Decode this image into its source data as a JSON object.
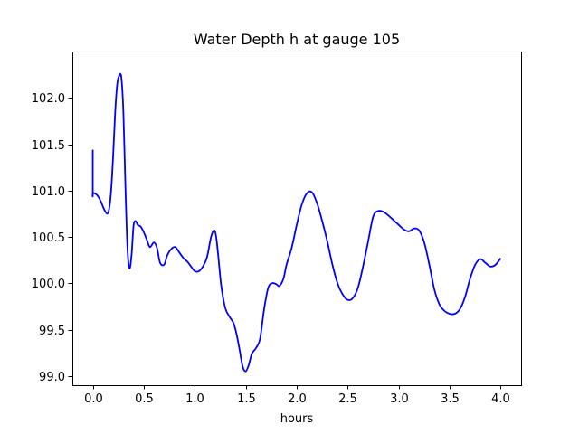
{
  "chart_data": {
    "type": "line",
    "title": "Water Depth h at gauge 105",
    "xlabel": "hours",
    "ylabel": "",
    "xlim": [
      -0.2,
      4.2
    ],
    "ylim": [
      98.9,
      102.5
    ],
    "xticks": [
      0.0,
      0.5,
      1.0,
      1.5,
      2.0,
      2.5,
      3.0,
      3.5,
      4.0
    ],
    "xtick_labels": [
      "0.0",
      "0.5",
      "1.0",
      "1.5",
      "2.0",
      "2.5",
      "3.0",
      "3.5",
      "4.0"
    ],
    "yticks": [
      99.0,
      99.5,
      100.0,
      100.5,
      101.0,
      101.5,
      102.0
    ],
    "ytick_labels": [
      "99.0",
      "99.5",
      "100.0",
      "100.5",
      "101.0",
      "101.5",
      "102.0"
    ],
    "grid": false,
    "series": [
      {
        "name": "h",
        "color": "#0000ff",
        "x": [
          0.0,
          0.0,
          0.0,
          0.02,
          0.05,
          0.08,
          0.11,
          0.14,
          0.16,
          0.18,
          0.2,
          0.22,
          0.24,
          0.26,
          0.28,
          0.3,
          0.32,
          0.34,
          0.36,
          0.38,
          0.4,
          0.42,
          0.44,
          0.47,
          0.5,
          0.53,
          0.56,
          0.6,
          0.63,
          0.66,
          0.7,
          0.73,
          0.77,
          0.81,
          0.85,
          0.89,
          0.93,
          0.97,
          1.0,
          1.04,
          1.08,
          1.12,
          1.16,
          1.19,
          1.21,
          1.23,
          1.26,
          1.3,
          1.34,
          1.38,
          1.41,
          1.44,
          1.47,
          1.5,
          1.53,
          1.56,
          1.6,
          1.64,
          1.68,
          1.72,
          1.76,
          1.8,
          1.83,
          1.87,
          1.9,
          1.95,
          2.0,
          2.05,
          2.1,
          2.15,
          2.2,
          2.25,
          2.3,
          2.35,
          2.4,
          2.45,
          2.5,
          2.55,
          2.6,
          2.65,
          2.7,
          2.75,
          2.8,
          2.85,
          2.9,
          2.95,
          3.0,
          3.05,
          3.1,
          3.15,
          3.2,
          3.25,
          3.3,
          3.35,
          3.4,
          3.45,
          3.5,
          3.55,
          3.6,
          3.65,
          3.7,
          3.75,
          3.8,
          3.85,
          3.9,
          3.95,
          4.0
        ],
        "y": [
          101.44,
          100.97,
          100.97,
          100.97,
          100.94,
          100.88,
          100.8,
          100.75,
          100.8,
          101.0,
          101.38,
          101.85,
          102.15,
          102.24,
          102.22,
          101.85,
          101.05,
          100.38,
          100.16,
          100.3,
          100.62,
          100.67,
          100.63,
          100.61,
          100.55,
          100.47,
          100.39,
          100.44,
          100.38,
          100.22,
          100.2,
          100.3,
          100.37,
          100.39,
          100.33,
          100.27,
          100.23,
          100.17,
          100.13,
          100.13,
          100.18,
          100.28,
          100.5,
          100.57,
          100.5,
          100.3,
          99.97,
          99.73,
          99.64,
          99.57,
          99.45,
          99.28,
          99.1,
          99.05,
          99.12,
          99.24,
          99.3,
          99.4,
          99.72,
          99.95,
          100.0,
          99.99,
          99.97,
          100.05,
          100.2,
          100.38,
          100.63,
          100.85,
          100.97,
          100.98,
          100.86,
          100.67,
          100.45,
          100.2,
          100.0,
          99.88,
          99.82,
          99.84,
          99.95,
          100.18,
          100.45,
          100.72,
          100.78,
          100.77,
          100.73,
          100.68,
          100.63,
          100.58,
          100.56,
          100.59,
          100.57,
          100.44,
          100.2,
          99.93,
          99.77,
          99.7,
          99.67,
          99.67,
          99.72,
          99.85,
          100.05,
          100.2,
          100.26,
          100.22,
          100.18,
          100.2,
          100.27
        ]
      }
    ]
  }
}
